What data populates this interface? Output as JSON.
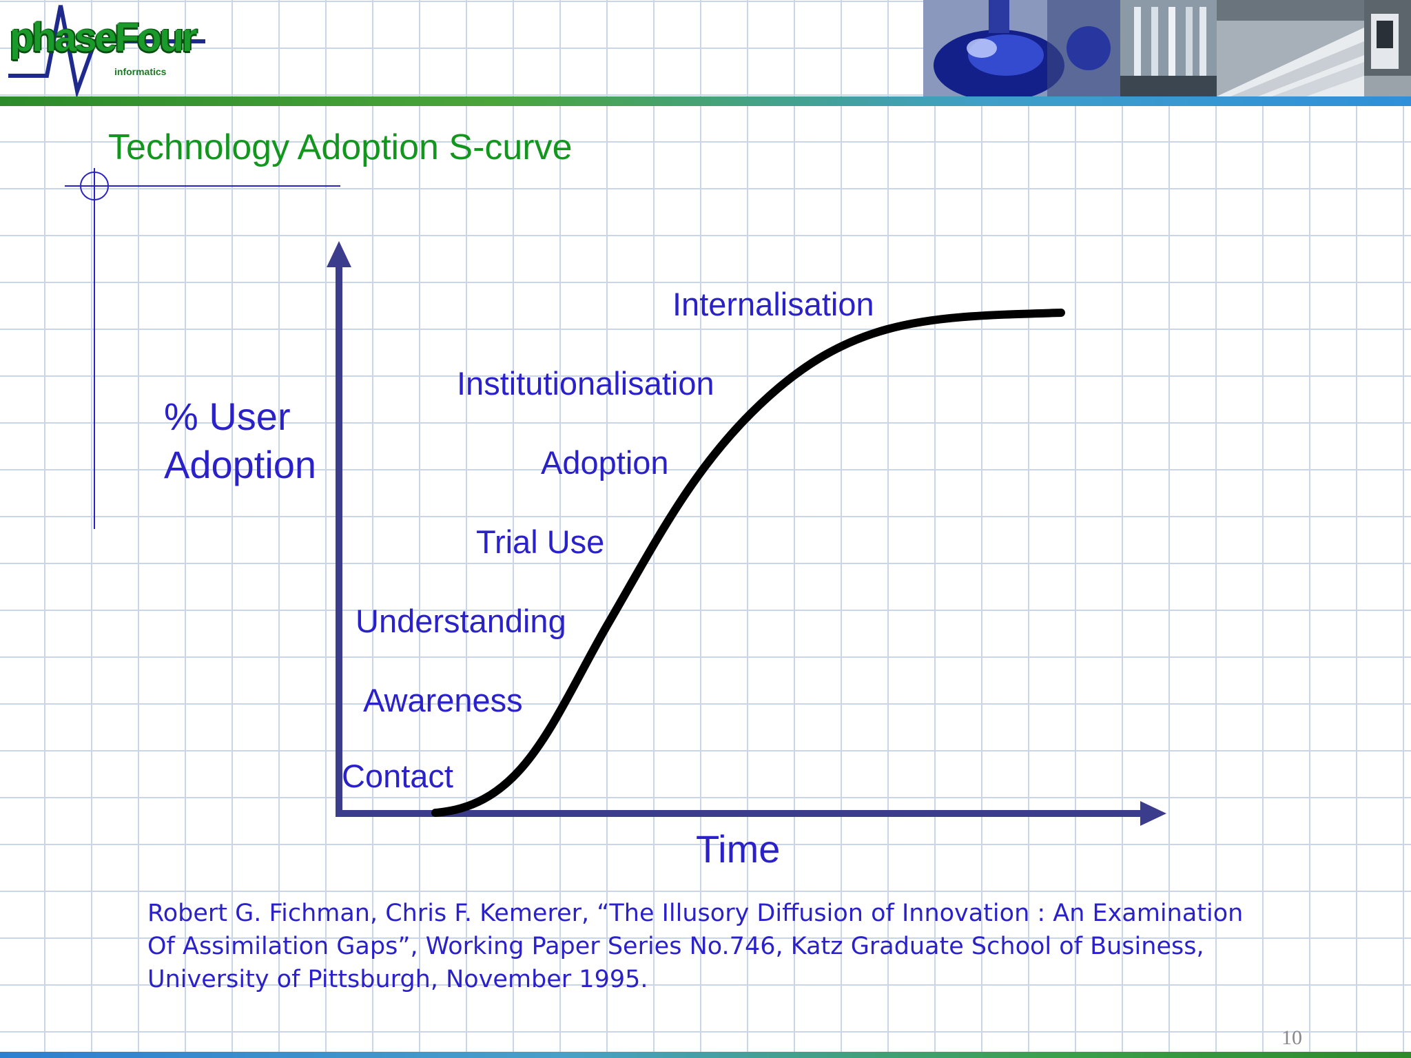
{
  "header": {
    "logo_word": "phaseFour",
    "logo_subtitle": "informatics",
    "photos": [
      {
        "name": "flask-photo",
        "colors": [
          "#0d1a6e",
          "#3650d8",
          "#9fb0ef",
          "#1a2a8a"
        ]
      },
      {
        "name": "pipettes-photo",
        "colors": [
          "#6c7a88",
          "#c8d0d8",
          "#3c4650",
          "#e0e6ec"
        ]
      },
      {
        "name": "keyboard-photo",
        "colors": [
          "#bfc6cc",
          "#eef1f3",
          "#8a9299",
          "#d6dbe0"
        ]
      },
      {
        "name": "lab-machine-photo",
        "colors": [
          "#2a3038",
          "#9aa2aa",
          "#e6eaee",
          "#4c545c"
        ]
      }
    ],
    "accent_colors": {
      "green": "#2d8a2a",
      "blue": "#2f8fd8"
    }
  },
  "slide": {
    "title": "Technology Adoption S-curve",
    "page_number": "10"
  },
  "diagram": {
    "y_axis_label_line1": "% User",
    "y_axis_label_line2": "Adoption",
    "x_axis_label": "Time",
    "stages": [
      "Contact",
      "Awareness",
      "Understanding",
      "Trial Use",
      "Adoption",
      "Institutionalisation",
      "Internalisation"
    ],
    "colors": {
      "axis": "#3c3c8c",
      "curve": "#000000",
      "text": "#2a22c8"
    }
  },
  "citation": {
    "line1": "Robert G. Fichman, Chris F. Kemerer, “The Illusory Diffusion of Innovation : An Examination",
    "line2": "Of Assimilation Gaps”, Working Paper Series No.746, Katz Graduate School of Business,",
    "line3": "University of Pittsburgh, November 1995."
  }
}
